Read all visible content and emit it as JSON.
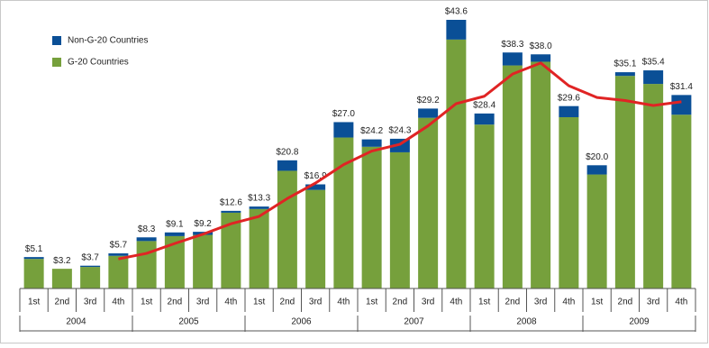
{
  "chart_data": {
    "type": "stacked-bar",
    "categories": [
      "1st",
      "2nd",
      "3rd",
      "4th",
      "1st",
      "2nd",
      "3rd",
      "4th",
      "1st",
      "2nd",
      "3rd",
      "4th",
      "1st",
      "2nd",
      "3rd",
      "4th",
      "1st",
      "2nd",
      "3rd",
      "4th",
      "1st",
      "2nd",
      "3rd",
      "4th"
    ],
    "years": [
      "2004",
      "2005",
      "2006",
      "2007",
      "2008",
      "2009"
    ],
    "series": [
      {
        "name": "G-20 Countries",
        "color": "#76a03c",
        "values": [
          4.8,
          3.2,
          3.5,
          5.3,
          7.7,
          8.5,
          8.7,
          12.3,
          12.9,
          19.1,
          16.0,
          24.5,
          23.0,
          22.1,
          27.7,
          40.4,
          26.6,
          36.2,
          36.8,
          27.8,
          18.5,
          34.5,
          33.2,
          28.2
        ]
      },
      {
        "name": "Non-G-20 Countries",
        "color": "#0a4f96",
        "values": [
          0.3,
          0.0,
          0.2,
          0.4,
          0.6,
          0.6,
          0.5,
          0.3,
          0.4,
          1.7,
          0.9,
          2.5,
          1.2,
          2.2,
          1.5,
          3.2,
          1.8,
          2.1,
          1.2,
          1.8,
          1.5,
          0.6,
          2.2,
          3.2
        ]
      }
    ],
    "totals": [
      5.1,
      3.2,
      3.7,
      5.7,
      8.3,
      9.1,
      9.2,
      12.6,
      13.3,
      20.8,
      16.9,
      27.0,
      24.2,
      24.3,
      29.2,
      43.6,
      28.4,
      38.3,
      38.0,
      29.6,
      20.0,
      35.1,
      35.4,
      31.4
    ],
    "total_labels": [
      "$5.1",
      "$3.2",
      "$3.7",
      "$5.7",
      "$8.3",
      "$9.1",
      "$9.2",
      "$12.6",
      "$13.3",
      "$20.8",
      "$16.9",
      "$27.0",
      "$24.2",
      "$24.3",
      "$29.2",
      "$43.6",
      "$28.4",
      "$38.3",
      "$38.0",
      "$29.6",
      "$20.0",
      "$35.1",
      "$35.4",
      "$31.4"
    ],
    "trend": {
      "color": "#e02424",
      "values": [
        null,
        null,
        null,
        4.8,
        5.7,
        7.3,
        8.8,
        10.5,
        11.7,
        14.6,
        17.1,
        20.1,
        22.3,
        23.4,
        26.4,
        30.0,
        31.2,
        34.8,
        36.6,
        32.9,
        31.0,
        30.5,
        29.7,
        30.3
      ]
    }
  }
}
